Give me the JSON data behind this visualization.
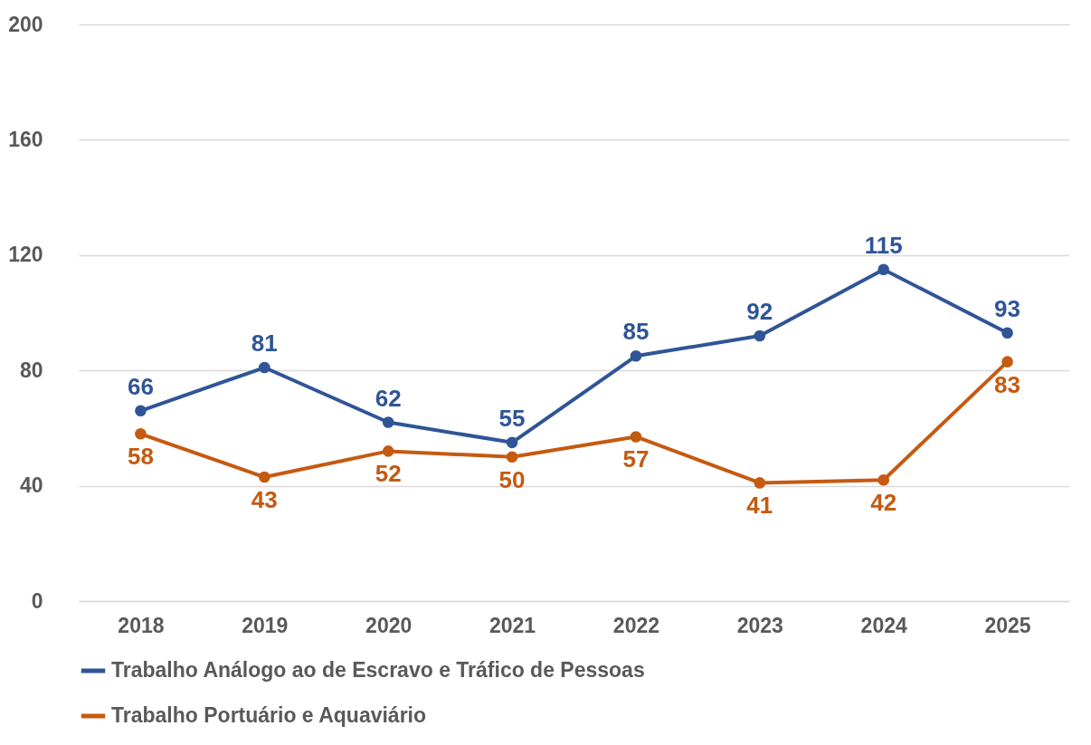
{
  "chart_data": {
    "type": "line",
    "categories": [
      "2018",
      "2019",
      "2020",
      "2021",
      "2022",
      "2023",
      "2024",
      "2025"
    ],
    "series": [
      {
        "name": "Trabalho Análogo ao de Escravo e Tráfico de Pessoas",
        "color": "#2f5597",
        "values": [
          66,
          81,
          62,
          55,
          85,
          92,
          115,
          93
        ]
      },
      {
        "name": "Trabalho Portuário e Aquaviário",
        "color": "#c55a11",
        "values": [
          58,
          43,
          52,
          50,
          57,
          41,
          42,
          83
        ]
      }
    ],
    "ylim": [
      0,
      200
    ],
    "yticks": [
      0,
      40,
      80,
      120,
      160,
      200
    ],
    "grid": "y",
    "legend": "bottom",
    "marker": "circle",
    "line_style": "solid",
    "data_labels": true
  }
}
